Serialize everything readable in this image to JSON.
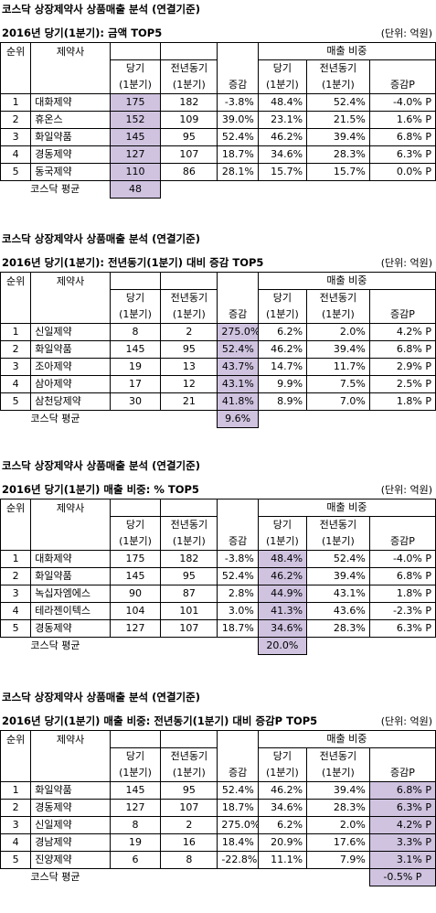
{
  "common": {
    "title": "코스닥 상장제약사 상품매출 분석 (연결기준)",
    "unit": "(단위: 억원)",
    "headers": {
      "rank": "순위",
      "company": "제약사",
      "share": "매출 비중",
      "cur_top": "당기",
      "cur_bot": "(1분기)",
      "prev_top": "전년동기",
      "prev_bot": "(1분기)",
      "change": "증감",
      "s_cur_top": "당기",
      "s_cur_bot": "(1분기)",
      "s_prev_top": "전년동기",
      "s_prev_bot": "(1분기)",
      "s_change": "증감P"
    },
    "avg_label": "코스닥 평균"
  },
  "tables": [
    {
      "subtitle": "2016년 당기(1분기):  금액 TOP5",
      "highlight": "cur",
      "avg": "48",
      "rows": [
        {
          "rank": "1",
          "company": "대화제약",
          "cur": "175",
          "prev": "182",
          "chg": "-3.8%",
          "s_cur": "48.4%",
          "s_prev": "52.4%",
          "s_chg": "-4.0% P"
        },
        {
          "rank": "2",
          "company": "휴온스",
          "cur": "152",
          "prev": "109",
          "chg": "39.0%",
          "s_cur": "23.1%",
          "s_prev": "21.5%",
          "s_chg": "1.6% P"
        },
        {
          "rank": "3",
          "company": "화일약품",
          "cur": "145",
          "prev": "95",
          "chg": "52.4%",
          "s_cur": "46.2%",
          "s_prev": "39.4%",
          "s_chg": "6.8% P"
        },
        {
          "rank": "4",
          "company": "경동제약",
          "cur": "127",
          "prev": "107",
          "chg": "18.7%",
          "s_cur": "34.6%",
          "s_prev": "28.3%",
          "s_chg": "6.3% P"
        },
        {
          "rank": "5",
          "company": "동국제약",
          "cur": "110",
          "prev": "86",
          "chg": "28.1%",
          "s_cur": "15.7%",
          "s_prev": "15.7%",
          "s_chg": "0.0% P"
        }
      ]
    },
    {
      "subtitle": "2016년 당기(1분기):  전년동기(1분기) 대비 증감 TOP5",
      "highlight": "chg",
      "avg": "9.6%",
      "rows": [
        {
          "rank": "1",
          "company": "신일제약",
          "cur": "8",
          "prev": "2",
          "chg": "275.0%",
          "s_cur": "6.2%",
          "s_prev": "2.0%",
          "s_chg": "4.2% P"
        },
        {
          "rank": "2",
          "company": "화일약품",
          "cur": "145",
          "prev": "95",
          "chg": "52.4%",
          "s_cur": "46.2%",
          "s_prev": "39.4%",
          "s_chg": "6.8% P"
        },
        {
          "rank": "3",
          "company": "조아제약",
          "cur": "19",
          "prev": "13",
          "chg": "43.7%",
          "s_cur": "14.7%",
          "s_prev": "11.7%",
          "s_chg": "2.9% P"
        },
        {
          "rank": "4",
          "company": "삼아제약",
          "cur": "17",
          "prev": "12",
          "chg": "43.1%",
          "s_cur": "9.9%",
          "s_prev": "7.5%",
          "s_chg": "2.5% P"
        },
        {
          "rank": "5",
          "company": "삼천당제약",
          "cur": "30",
          "prev": "21",
          "chg": "41.8%",
          "s_cur": "8.9%",
          "s_prev": "7.0%",
          "s_chg": "1.8% P"
        }
      ]
    },
    {
      "subtitle": "2016년 당기(1분기) 매출 비중: % TOP5",
      "highlight": "s_cur",
      "avg": "20.0%",
      "rows": [
        {
          "rank": "1",
          "company": "대화제약",
          "cur": "175",
          "prev": "182",
          "chg": "-3.8%",
          "s_cur": "48.4%",
          "s_prev": "52.4%",
          "s_chg": "-4.0% P"
        },
        {
          "rank": "2",
          "company": "화일약품",
          "cur": "145",
          "prev": "95",
          "chg": "52.4%",
          "s_cur": "46.2%",
          "s_prev": "39.4%",
          "s_chg": "6.8% P"
        },
        {
          "rank": "3",
          "company": "녹십자엠에스",
          "cur": "90",
          "prev": "87",
          "chg": "2.8%",
          "s_cur": "44.9%",
          "s_prev": "43.1%",
          "s_chg": "1.8% P"
        },
        {
          "rank": "4",
          "company": "테라젠이텍스",
          "cur": "104",
          "prev": "101",
          "chg": "3.0%",
          "s_cur": "41.3%",
          "s_prev": "43.6%",
          "s_chg": "-2.3% P"
        },
        {
          "rank": "5",
          "company": "경동제약",
          "cur": "127",
          "prev": "107",
          "chg": "18.7%",
          "s_cur": "34.6%",
          "s_prev": "28.3%",
          "s_chg": "6.3% P"
        }
      ]
    },
    {
      "subtitle": "2016년 당기(1분기) 매출 비중:  전년동기(1분기) 대비 증감P TOP5",
      "highlight": "s_chg",
      "avg": "-0.5% P",
      "rows": [
        {
          "rank": "1",
          "company": "화일약품",
          "cur": "145",
          "prev": "95",
          "chg": "52.4%",
          "s_cur": "46.2%",
          "s_prev": "39.4%",
          "s_chg": "6.8% P"
        },
        {
          "rank": "2",
          "company": "경동제약",
          "cur": "127",
          "prev": "107",
          "chg": "18.7%",
          "s_cur": "34.6%",
          "s_prev": "28.3%",
          "s_chg": "6.3% P"
        },
        {
          "rank": "3",
          "company": "신일제약",
          "cur": "8",
          "prev": "2",
          "chg": "275.0%",
          "s_cur": "6.2%",
          "s_prev": "2.0%",
          "s_chg": "4.2% P"
        },
        {
          "rank": "4",
          "company": "경남제약",
          "cur": "19",
          "prev": "16",
          "chg": "18.4%",
          "s_cur": "20.9%",
          "s_prev": "17.6%",
          "s_chg": "3.3% P"
        },
        {
          "rank": "5",
          "company": "진양제약",
          "cur": "6",
          "prev": "8",
          "chg": "-22.8%",
          "s_cur": "11.1%",
          "s_prev": "7.9%",
          "s_chg": "3.1% P"
        }
      ]
    }
  ]
}
